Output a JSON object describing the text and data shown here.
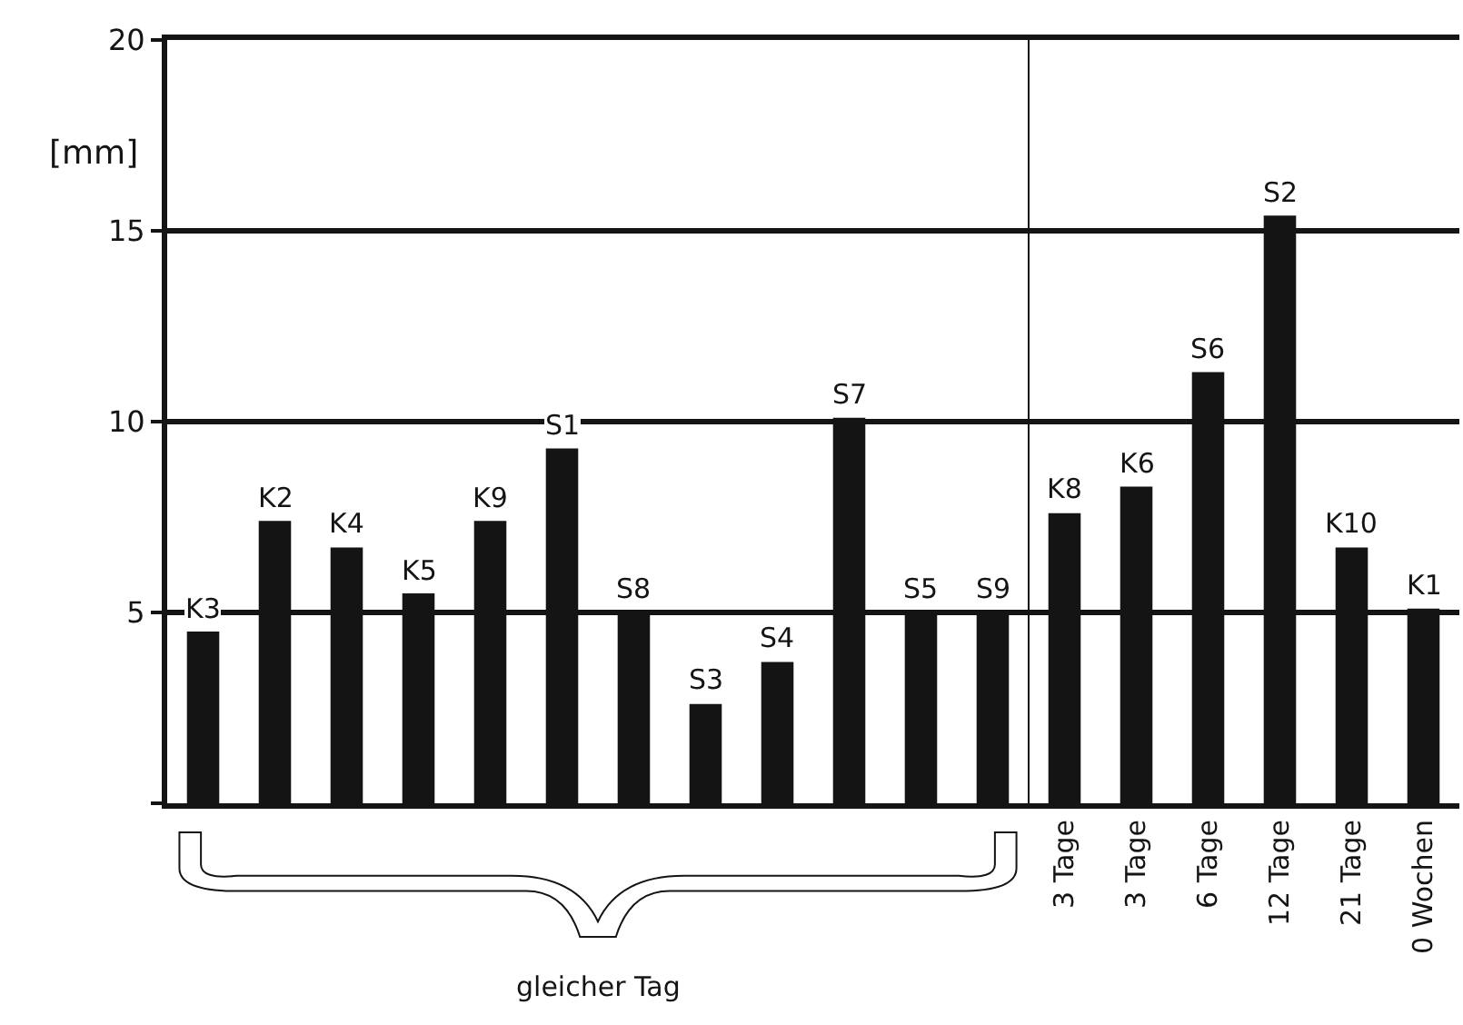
{
  "chart_data": {
    "type": "bar",
    "ylabel": "[mm]",
    "categories": [
      null,
      null,
      null,
      null,
      null,
      null,
      null,
      null,
      null,
      null,
      null,
      null,
      "3 Tage",
      "3 Tage",
      "6 Tage",
      "12 Tage",
      "21 Tage",
      "0 Wochen"
    ],
    "values": [
      4.5,
      7.4,
      6.7,
      5.5,
      7.4,
      9.3,
      5.0,
      2.6,
      3.7,
      10.1,
      5.0,
      5.0,
      7.6,
      8.3,
      11.3,
      15.4,
      6.7,
      5.1
    ],
    "value_labels": [
      "K3",
      "K2",
      "K4",
      "K5",
      "K9",
      "S1",
      "S8",
      "S3",
      "S4",
      "S7",
      "S5",
      "S9",
      "K8",
      "K6",
      "S6",
      "S2",
      "K10",
      "K1"
    ],
    "color": "#141414",
    "ylim": [
      0,
      20
    ],
    "yticks": [
      {
        "value": 0,
        "label": null
      },
      5,
      10,
      15,
      20
    ],
    "grid": "y",
    "annotations": [
      "gleicher Tag"
    ]
  }
}
